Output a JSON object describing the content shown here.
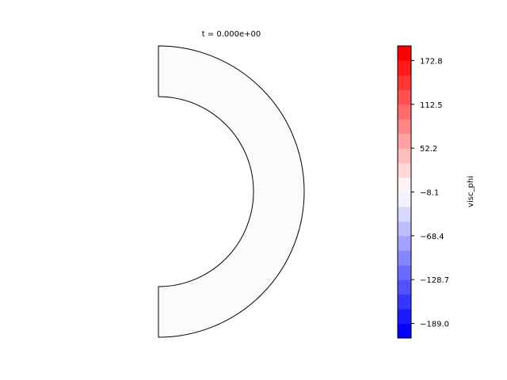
{
  "chart_data": {
    "type": "heatmap",
    "title": "t = 0.000e+00",
    "geometry": "half-annulus",
    "field_values": "uniform near 0",
    "colorbar": {
      "label": "visc_phi",
      "colormap": "bwr",
      "n_levels": 20,
      "range": [
        -209.1,
        192.9
      ],
      "ticks": [
        "172.8",
        "112.5",
        "52.2",
        "−8.1",
        "−68.4",
        "−128.7",
        "−189.0"
      ],
      "tick_values": [
        172.8,
        112.5,
        52.2,
        -8.1,
        -68.4,
        -128.7,
        -189.0
      ]
    },
    "colors": {
      "low": "#0000ff",
      "mid": "#ffffff",
      "high": "#ff0000",
      "field_fill": "#fbfbfb"
    }
  }
}
